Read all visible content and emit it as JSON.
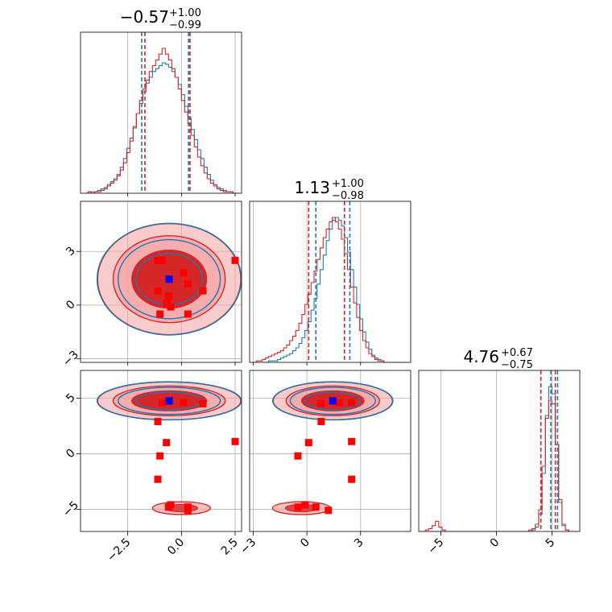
{
  "colors": {
    "blue": "#1f77b4",
    "red": "#d62728",
    "red_fill": "#f4a3a3",
    "red_dark": "#d62728",
    "marker_blue": "#0000ff",
    "marker_red": "#ff0000"
  },
  "chart_data": {
    "type": "corner",
    "grid": true,
    "parameters": [
      {
        "range": [
          -4.7,
          2.8
        ],
        "ticks": [
          -2.5,
          0.0,
          2.5
        ],
        "tick_labels": [
          "−2.5",
          "0.0",
          "2.5"
        ],
        "title": {
          "median": "−0.57",
          "plus": "+1.00",
          "minus": "−0.99"
        },
        "quantiles": {
          "blue": [
            -1.85,
            0.33
          ],
          "red": [
            -1.7,
            0.4
          ]
        }
      },
      {
        "range": [
          -3.2,
          5.8
        ],
        "ticks": [
          -3,
          0,
          3
        ],
        "tick_labels": [
          "−3",
          "0",
          "3"
        ],
        "title": {
          "median": "1.13",
          "plus": "+1.00",
          "minus": "−0.98"
        },
        "quantiles": {
          "blue": [
            0.5,
            2.4
          ],
          "red": [
            0.1,
            2.1
          ]
        }
      },
      {
        "range": [
          -7.0,
          7.5
        ],
        "ticks": [
          -5,
          0,
          5
        ],
        "tick_labels": [
          "−5",
          "0",
          "5"
        ],
        "title": {
          "median": "4.76",
          "plus": "+0.67",
          "minus": "−0.75"
        },
        "quantiles": {
          "blue": [
            4.9,
            5.5
          ],
          "red": [
            4.0,
            5.3
          ]
        }
      }
    ],
    "marginals": [
      {
        "bins_start": -4.5,
        "bin_width": 0.15,
        "blue": [
          0,
          1,
          1,
          1,
          2,
          3,
          4,
          6,
          8,
          10,
          13,
          18,
          24,
          31,
          38,
          46,
          55,
          62,
          70,
          76,
          80,
          84,
          86,
          88,
          90,
          89,
          87,
          84,
          80,
          75,
          68,
          60,
          52,
          44,
          37,
          30,
          24,
          18,
          13,
          9,
          6,
          4,
          3,
          2,
          1,
          1,
          0,
          0
        ],
        "red": [
          0,
          1,
          0,
          1,
          1,
          2,
          3,
          5,
          7,
          9,
          12,
          16,
          21,
          28,
          36,
          45,
          55,
          64,
          72,
          78,
          84,
          88,
          92,
          96,
          100,
          96,
          92,
          86,
          80,
          72,
          64,
          56,
          48,
          40,
          32,
          25,
          19,
          14,
          10,
          7,
          5,
          3,
          2,
          1,
          1,
          1,
          0,
          0
        ]
      },
      {
        "bins_start": -3.0,
        "bin_width": 0.17,
        "blue": [
          0,
          0,
          0,
          0,
          0,
          1,
          1,
          1,
          2,
          3,
          4,
          5,
          6,
          8,
          10,
          13,
          17,
          22,
          28,
          36,
          44,
          54,
          64,
          74,
          84,
          92,
          98,
          100,
          98,
          94,
          86,
          76,
          64,
          52,
          40,
          30,
          21,
          14,
          9,
          5,
          3,
          2,
          1,
          0,
          0,
          0,
          0,
          0,
          0,
          0
        ],
        "red": [
          0,
          1,
          1,
          2,
          3,
          4,
          5,
          6,
          7,
          8,
          10,
          12,
          15,
          18,
          22,
          27,
          33,
          40,
          47,
          55,
          63,
          71,
          79,
          86,
          92,
          97,
          100,
          97,
          92,
          85,
          75,
          64,
          52,
          41,
          31,
          22,
          15,
          10,
          6,
          4,
          2,
          1,
          1,
          0,
          0,
          0,
          0,
          0,
          0,
          0
        ]
      },
      {
        "bins_start": -7.0,
        "bin_width": 0.3,
        "blue": [
          0,
          0,
          0,
          0,
          0,
          0,
          0,
          0,
          0,
          0,
          0,
          0,
          0,
          0,
          0,
          0,
          0,
          0,
          0,
          0,
          0,
          0,
          0,
          0,
          0,
          0,
          0,
          0,
          0,
          0,
          0,
          0,
          0,
          0,
          1,
          3,
          12,
          40,
          80,
          100,
          95,
          60,
          20,
          4,
          1,
          0,
          0,
          0
        ],
        "red": [
          0,
          0,
          1,
          2,
          4,
          7,
          3,
          1,
          0,
          0,
          0,
          0,
          0,
          0,
          0,
          0,
          0,
          0,
          0,
          0,
          0,
          0,
          0,
          0,
          0,
          0,
          0,
          0,
          0,
          0,
          0,
          0,
          0,
          1,
          2,
          5,
          15,
          45,
          78,
          90,
          88,
          60,
          22,
          5,
          1,
          0,
          0,
          0
        ]
      }
    ],
    "markers": {
      "blue": [
        -0.57,
        1.45,
        4.76
      ],
      "red": [
        [
          -0.9,
          2.5,
          4.6
        ],
        [
          -1.1,
          0.8,
          2.9
        ],
        [
          -0.7,
          0.1,
          1.0
        ],
        [
          1.0,
          0.8,
          4.5
        ],
        [
          -1.0,
          -0.5,
          -0.2
        ],
        [
          0.3,
          -0.5,
          -4.8
        ],
        [
          -1.1,
          2.5,
          -2.3
        ],
        [
          -0.5,
          -0.1,
          -4.6
        ],
        [
          0.3,
          1.2,
          -5.1
        ],
        [
          2.5,
          2.5,
          1.1
        ],
        [
          -0.6,
          0.5,
          -4.8
        ],
        [
          0.1,
          1.8,
          4.6
        ]
      ]
    }
  }
}
